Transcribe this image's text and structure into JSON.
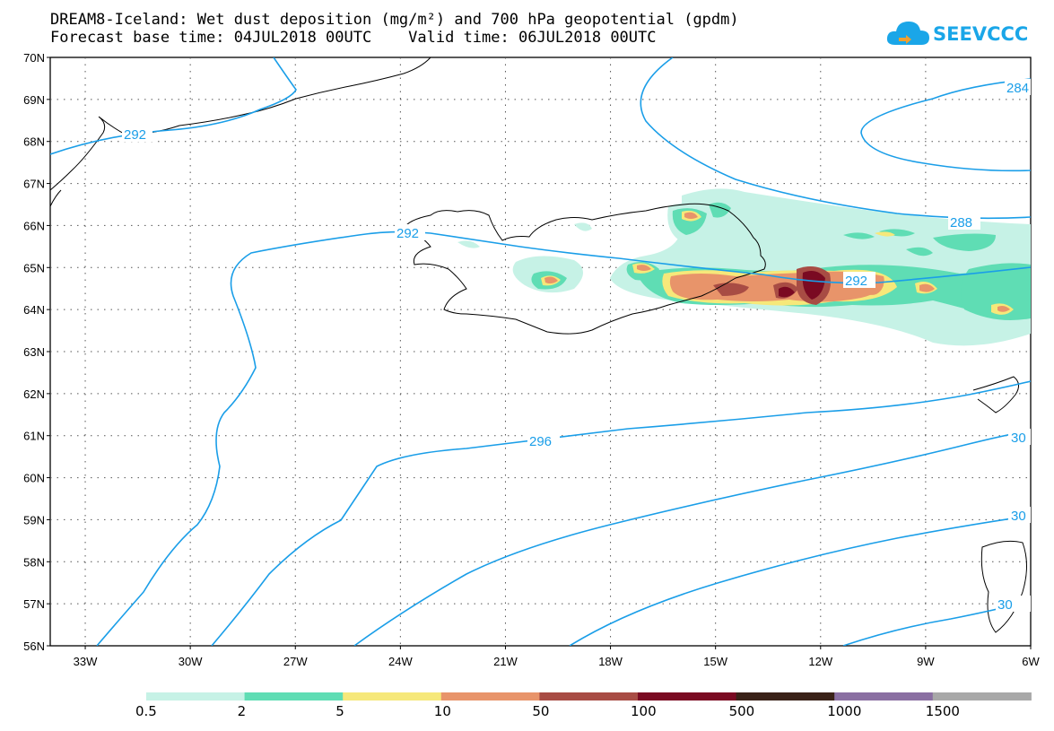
{
  "title": {
    "line1": "DREAM8-Iceland: Wet dust deposition (mg/m²) and 700 hPa geopotential (gpdm)",
    "line2": "Forecast base time: 04JUL2018 00UTC    Valid time: 06JUL2018 00UTC"
  },
  "logo": {
    "text": "SEEVCCC",
    "icon": "cloud-icon"
  },
  "axes": {
    "lat_labels": [
      "70N",
      "69N",
      "68N",
      "67N",
      "66N",
      "65N",
      "64N",
      "63N",
      "62N",
      "61N",
      "60N",
      "59N",
      "58N",
      "57N",
      "56N"
    ],
    "lon_labels": [
      "33W",
      "30W",
      "27W",
      "24W",
      "21W",
      "18W",
      "15W",
      "12W",
      "9W",
      "6W"
    ]
  },
  "contours": {
    "color": "#1a9ee8",
    "labels": [
      "292",
      "292",
      "284",
      "288",
      "292",
      "296",
      "30",
      "30",
      "30"
    ]
  },
  "legend": {
    "colors": [
      "#c6f2e6",
      "#5fddb4",
      "#f6e87a",
      "#e8946a",
      "#a84c44",
      "#7a0a22",
      "#3a2218",
      "#8a6fa2",
      "#a8a8a8"
    ],
    "labels": [
      "0.5",
      "2",
      "5",
      "10",
      "50",
      "100",
      "500",
      "1000",
      "1500"
    ]
  },
  "chart_data": {
    "type": "heatmap",
    "title": "DREAM8-Iceland: Wet dust deposition (mg/m²) and 700 hPa geopotential (gpdm)",
    "xlabel": "",
    "ylabel": "",
    "lat_range": [
      56,
      70
    ],
    "lon_range": [
      -34,
      -6
    ],
    "grid": true,
    "contour_values_gpdm": [
      284,
      288,
      292,
      296
    ],
    "legend_breaks_mg_m2": [
      0.5,
      2,
      5,
      10,
      50,
      100,
      500,
      1000,
      1500
    ]
  }
}
